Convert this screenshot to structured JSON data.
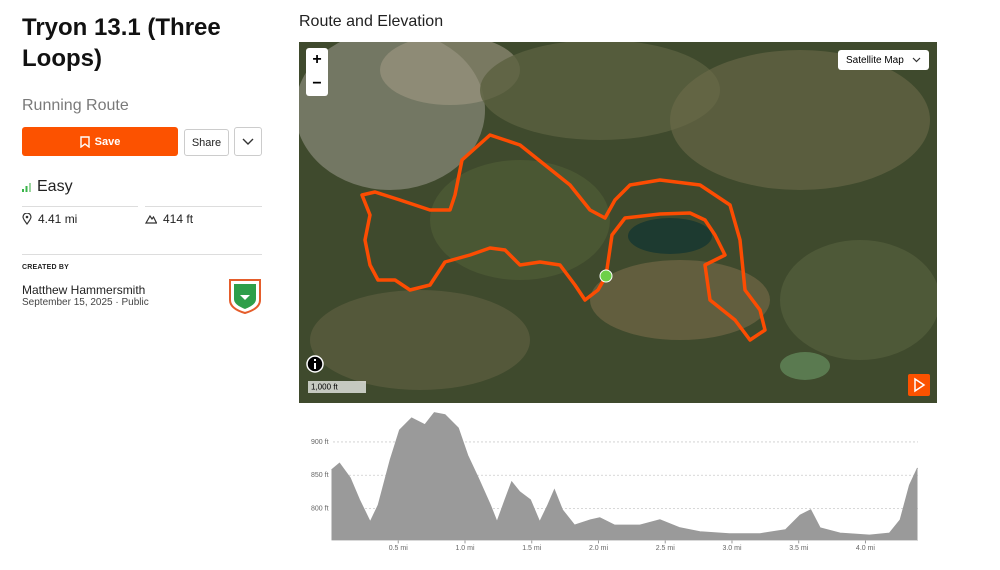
{
  "sidebar": {
    "title": "Tryon 13.1 (Three Loops)",
    "route_type": "Running Route",
    "buttons": {
      "save": "Save",
      "share": "Share"
    },
    "difficulty": "Easy",
    "distance": "4.41 mi",
    "elevation_gain": "414 ft",
    "created_by_label": "CREATED BY",
    "author": "Matthew Hammersmith",
    "date": "September 15, 2025 · Public"
  },
  "main": {
    "heading": "Route and Elevation",
    "map": {
      "map_type": "Satellite Map",
      "zoom_in": "+",
      "zoom_out": "−",
      "scale": "1,000 ft"
    }
  },
  "chart_data": {
    "type": "area",
    "color": "#9a9a9a",
    "grid": true,
    "x": [
      0,
      0.06,
      0.14,
      0.21,
      0.29,
      0.35,
      0.44,
      0.51,
      0.6,
      0.7,
      0.77,
      0.85,
      0.95,
      1.02,
      1.1,
      1.19,
      1.24,
      1.3,
      1.35,
      1.41,
      1.49,
      1.56,
      1.62,
      1.67,
      1.73,
      1.82,
      1.94,
      2.01,
      2.12,
      2.31,
      2.46,
      2.61,
      2.76,
      2.98,
      3.21,
      3.4,
      3.51,
      3.59,
      3.66,
      3.81,
      4.03,
      4.18,
      4.26,
      4.33,
      4.39
    ],
    "values": [
      858,
      868,
      846,
      813,
      780,
      805,
      873,
      918,
      936,
      926,
      944,
      941,
      921,
      880,
      846,
      805,
      780,
      813,
      840,
      825,
      813,
      780,
      805,
      828,
      798,
      775,
      783,
      786,
      775,
      775,
      783,
      771,
      765,
      762,
      762,
      768,
      790,
      798,
      771,
      763,
      760,
      763,
      783,
      835,
      861
    ],
    "xlim": [
      0,
      4.41
    ],
    "xticks": [
      {
        "value": 0.5,
        "label": "0.5 mi"
      },
      {
        "value": 1,
        "label": "1.0 mi"
      },
      {
        "value": 1.5,
        "label": "1.5 mi"
      },
      {
        "value": 2,
        "label": "2.0 mi"
      },
      {
        "value": 2.5,
        "label": "2.5 mi"
      },
      {
        "value": 3,
        "label": "3.0 mi"
      },
      {
        "value": 3.5,
        "label": "3.5 mi"
      },
      {
        "value": 4,
        "label": "4.0 mi"
      }
    ],
    "ylim": [
      752,
      950
    ],
    "yticks": [
      {
        "value": 800,
        "label": "800 ft"
      },
      {
        "value": 850,
        "label": "850 ft"
      },
      {
        "value": 900,
        "label": "900 ft"
      }
    ]
  }
}
